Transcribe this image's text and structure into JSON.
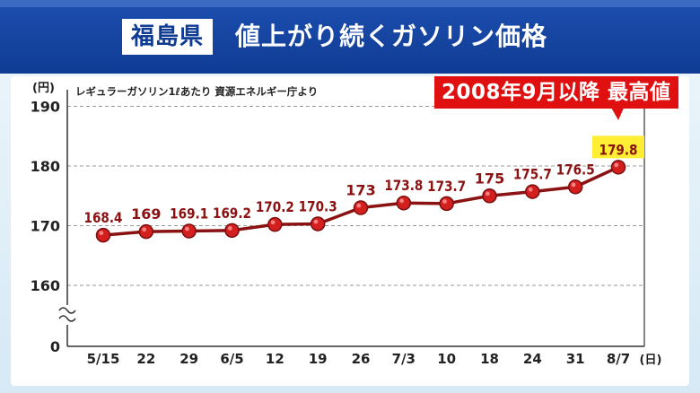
{
  "header": {
    "prefecture": "福島県",
    "title": "値上がり続くガソリン価格"
  },
  "source_note": "レギュラーガソリン1ℓあたり 資源エネルギー庁より",
  "highlight_label": "2008年9月以降 最高値",
  "colors": {
    "line": "#8a1212",
    "point": "#d41f1f",
    "label": "#8a1212",
    "header": "#0f3b93",
    "highlight_bg": "#e01010",
    "max_label_bg": "#ffee33"
  },
  "chart_data": {
    "type": "line",
    "ylabel": "(円)",
    "xlabel": "(日)",
    "categories": [
      "5/15",
      "22",
      "29",
      "6/5",
      "12",
      "19",
      "26",
      "7/3",
      "10",
      "18",
      "24",
      "31",
      "8/7"
    ],
    "values": [
      168.4,
      169,
      169.1,
      169.2,
      170.2,
      170.3,
      173,
      173.8,
      173.7,
      175,
      175.7,
      176.5,
      179.8
    ],
    "value_labels": [
      "168.4",
      "169",
      "169.1",
      "169.2",
      "170.2",
      "170.3",
      "173",
      "173.8",
      "173.7",
      "175",
      "175.7",
      "176.5",
      "179.8"
    ],
    "yticks": [
      190,
      180,
      170,
      160,
      0
    ],
    "ylim": [
      155,
      190
    ],
    "axis_break": true,
    "grid": true
  }
}
